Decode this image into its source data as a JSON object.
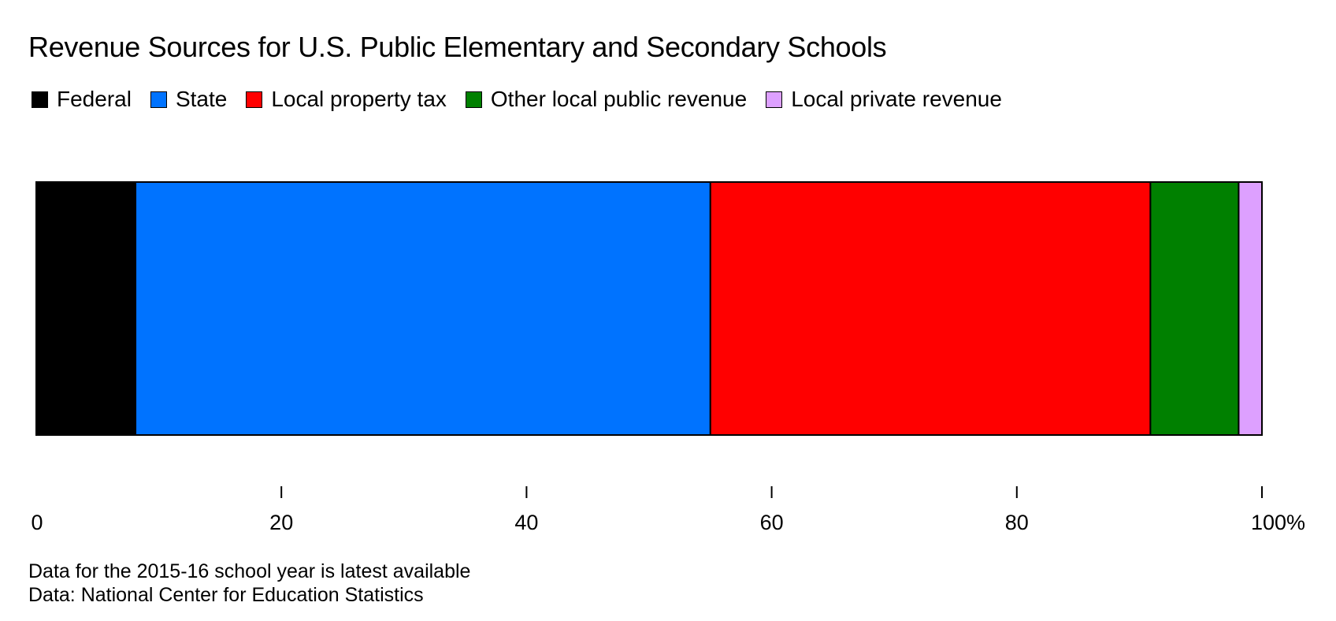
{
  "chart_data": {
    "type": "bar",
    "orientation": "horizontal",
    "stacked": true,
    "title": "Revenue Sources for U.S. Public Elementary and Secondary Schools",
    "categories": [
      ""
    ],
    "series": [
      {
        "name": "Federal",
        "values": [
          8.1
        ],
        "color": "#000000"
      },
      {
        "name": "State",
        "values": [
          46.9
        ],
        "color": "#0073ff"
      },
      {
        "name": "Local property tax",
        "values": [
          35.9
        ],
        "color": "#ff0000"
      },
      {
        "name": "Other local public revenue",
        "values": [
          7.2
        ],
        "color": "#008000"
      },
      {
        "name": "Local private revenue",
        "values": [
          1.9
        ],
        "color": "#dda0ff"
      }
    ],
    "xlim": [
      0,
      100
    ],
    "xticks": [
      {
        "value": 0,
        "label": "0"
      },
      {
        "value": 20,
        "label": "20"
      },
      {
        "value": 40,
        "label": "40"
      },
      {
        "value": 60,
        "label": "60"
      },
      {
        "value": 80,
        "label": "80"
      },
      {
        "value": 100,
        "label": "100%"
      }
    ],
    "xlabel": "",
    "ylabel": "",
    "grid": false,
    "legend_position": "top-left",
    "notes": [
      "Data for the 2015-16 school year is latest available",
      "Data: National Center for Education Statistics"
    ]
  }
}
